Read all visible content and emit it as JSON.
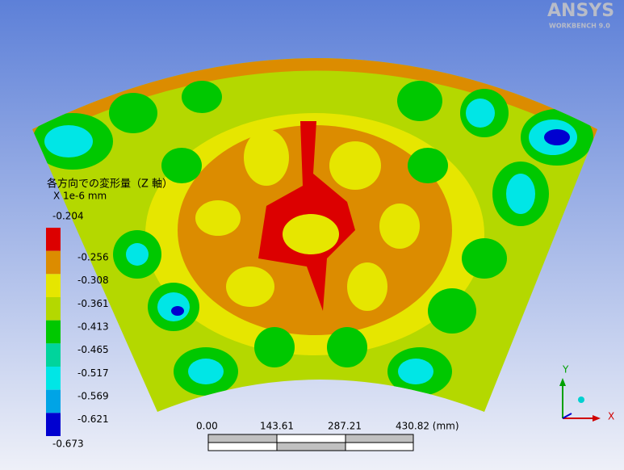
{
  "logo": {
    "name": "ANSYS",
    "product": "WORKBENCH 9.0"
  },
  "legend": {
    "title": "各方向での変形量（Z 軸）",
    "unit": "X 1e-6 mm",
    "labels": [
      "-0.204",
      "-0.256",
      "-0.308",
      "-0.361",
      "-0.413",
      "-0.465",
      "-0.517",
      "-0.569",
      "-0.621",
      "-0.673"
    ],
    "colors": [
      "#dc0000",
      "#dc8c00",
      "#e6e600",
      "#b4d800",
      "#00c800",
      "#00d49c",
      "#00e6e6",
      "#00a4e6",
      "#0000d0"
    ]
  },
  "scale_bar": {
    "labels": [
      "0.00",
      "143.61",
      "287.21",
      "430.82 (mm)"
    ]
  },
  "triad": {
    "x": "X",
    "y": "Y"
  }
}
